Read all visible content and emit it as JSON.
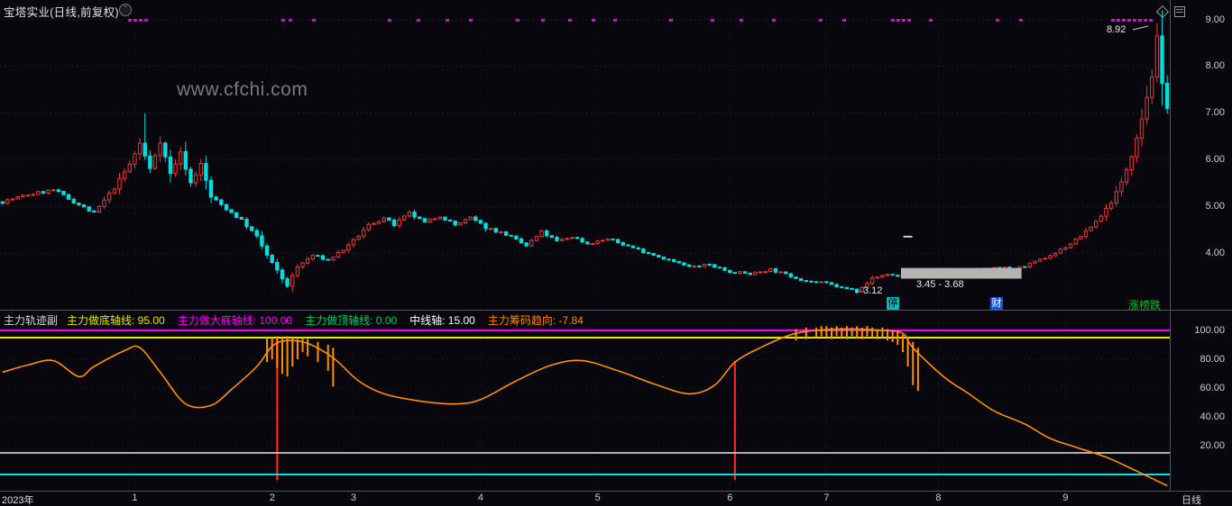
{
  "app": {
    "title": "宝塔实业(日线,前复权)",
    "watermark": "www.cfchi.com",
    "period_label": "日线",
    "year_label": "2023年"
  },
  "colors": {
    "background": "#07070d",
    "up": "#f03838",
    "down": "#00dede",
    "grid": "#1d1d2e",
    "ind_grid": "#161624",
    "separator": "#53535f",
    "axis_text": "#cfcfcf",
    "signal_dot": "#e800e8",
    "range_box": "#b4b4b4",
    "red_signal": "#ff2222",
    "curve": "#ff9000",
    "pointer_line": "#cfcfcf",
    "dash_marker": "#d0d0d0"
  },
  "chart_data": [
    {
      "type": "candlestick",
      "name": "main-price-chart",
      "title": "宝塔实业(日线,前复权)",
      "period": "日线",
      "adjust": "前复权",
      "days": 230,
      "ylim": [
        3.0,
        9.25
      ],
      "yticks": [
        {
          "label": "9.00",
          "value": 9
        },
        {
          "label": "8.00",
          "value": 8
        },
        {
          "label": "7.00",
          "value": 7
        },
        {
          "label": "6.00",
          "value": 6
        },
        {
          "label": "5.00",
          "value": 5
        },
        {
          "label": "4.00",
          "value": 4
        }
      ],
      "x_ticks": [
        {
          "label": "1",
          "day": 26
        },
        {
          "label": "2",
          "day": 53
        },
        {
          "label": "3",
          "day": 69
        },
        {
          "label": "4",
          "day": 94
        },
        {
          "label": "5",
          "day": 117
        },
        {
          "label": "6",
          "day": 143
        },
        {
          "label": "7",
          "day": 162
        },
        {
          "label": "8",
          "day": 184
        },
        {
          "label": "9",
          "day": 209
        }
      ],
      "close_anchors": [
        [
          0,
          5.1
        ],
        [
          5,
          5.25
        ],
        [
          10,
          5.35
        ],
        [
          14,
          5.1
        ],
        [
          18,
          4.85
        ],
        [
          22,
          5.4
        ],
        [
          25,
          5.9
        ],
        [
          27,
          6.35
        ],
        [
          29,
          5.8
        ],
        [
          31,
          6.4
        ],
        [
          33,
          5.7
        ],
        [
          35,
          6.15
        ],
        [
          37,
          5.5
        ],
        [
          39,
          5.9
        ],
        [
          41,
          5.2
        ],
        [
          44,
          4.95
        ],
        [
          47,
          4.7
        ],
        [
          50,
          4.35
        ],
        [
          52,
          3.95
        ],
        [
          55,
          3.45
        ],
        [
          56,
          3.3
        ],
        [
          58,
          3.7
        ],
        [
          61,
          3.95
        ],
        [
          64,
          3.85
        ],
        [
          68,
          4.15
        ],
        [
          72,
          4.6
        ],
        [
          75,
          4.75
        ],
        [
          77,
          4.6
        ],
        [
          80,
          4.85
        ],
        [
          83,
          4.65
        ],
        [
          86,
          4.8
        ],
        [
          89,
          4.6
        ],
        [
          92,
          4.75
        ],
        [
          95,
          4.55
        ],
        [
          99,
          4.4
        ],
        [
          103,
          4.15
        ],
        [
          106,
          4.45
        ],
        [
          109,
          4.25
        ],
        [
          112,
          4.35
        ],
        [
          115,
          4.2
        ],
        [
          119,
          4.3
        ],
        [
          123,
          4.15
        ],
        [
          127,
          4.0
        ],
        [
          131,
          3.85
        ],
        [
          135,
          3.7
        ],
        [
          139,
          3.75
        ],
        [
          143,
          3.6
        ],
        [
          147,
          3.55
        ],
        [
          151,
          3.65
        ],
        [
          155,
          3.5
        ],
        [
          158,
          3.4
        ],
        [
          162,
          3.35
        ],
        [
          165,
          3.25
        ],
        [
          168,
          3.2
        ],
        [
          171,
          3.45
        ],
        [
          174,
          3.55
        ],
        [
          176,
          3.5
        ],
        [
          179,
          3.6
        ],
        [
          183,
          3.65
        ],
        [
          187,
          3.55
        ],
        [
          191,
          3.6
        ],
        [
          195,
          3.7
        ],
        [
          199,
          3.65
        ],
        [
          203,
          3.8
        ],
        [
          207,
          4.0
        ],
        [
          210,
          4.2
        ],
        [
          213,
          4.45
        ],
        [
          216,
          4.8
        ],
        [
          218,
          5.1
        ],
        [
          220,
          5.5
        ],
        [
          222,
          6.1
        ],
        [
          224,
          6.9
        ],
        [
          226,
          7.8
        ],
        [
          227,
          8.6
        ],
        [
          228,
          7.6
        ],
        [
          229,
          7.15
        ]
      ],
      "high_overrides": [
        [
          28,
          7.0
        ],
        [
          227,
          8.92
        ]
      ],
      "low_overrides": [
        [
          56,
          3.25
        ],
        [
          168,
          3.12
        ]
      ],
      "annotations": {
        "peak_price": "8.92",
        "low_price": "←3.12",
        "range_label": "3.45 - 3.68"
      },
      "range_box": {
        "from_day": 177,
        "to_day": 200,
        "high": 3.68,
        "low": 3.45
      },
      "dash_marker": {
        "day": 178,
        "price": 4.37
      },
      "signal_dots_x": [
        142,
        148,
        154,
        160,
        312,
        320,
        346,
        430,
        462,
        494,
        520,
        572,
        600,
        630,
        656,
        680,
        742,
        788,
        820,
        856,
        908,
        934,
        988,
        994,
        1000,
        1006,
        1030,
        1104,
        1130,
        1232,
        1238,
        1244,
        1250,
        1256,
        1262,
        1268,
        1274
      ],
      "badges": [
        {
          "text": "停",
          "x": 983,
          "bg": "#00b8b8",
          "fg": "#001a1a"
        },
        {
          "text": "财",
          "x": 1098,
          "bg": "#1253e0",
          "fg": "#ffffff"
        }
      ],
      "corner_text": {
        "text": "涨榜跌",
        "color": "#00c020"
      }
    },
    {
      "type": "line",
      "name": "主力轨迹副",
      "header_params": [
        {
          "label": "主力做底轴线",
          "value": "95.00",
          "color": "#e8e800"
        },
        {
          "label": "主力做大底轴线",
          "value": "100.00",
          "color": "#ff00ff"
        },
        {
          "label": "主力做顶轴线",
          "value": "0.00",
          "color": "#00cc66"
        },
        {
          "label": "中线轴",
          "value": "15.00",
          "color": "#ffffff"
        },
        {
          "label": "主力筹码趋向",
          "value": "-7.84",
          "color": "#ff8800"
        }
      ],
      "yticks": [
        {
          "label": "100.00",
          "value": 100
        },
        {
          "label": "80.00",
          "value": 80
        },
        {
          "label": "60.00",
          "value": 60
        },
        {
          "label": "40.00",
          "value": 40
        },
        {
          "label": "20.00",
          "value": 20
        }
      ],
      "hlines": [
        {
          "value": 100,
          "color": "#ff00ff",
          "width": 2
        },
        {
          "value": 95,
          "color": "#e8e800",
          "width": 2
        },
        {
          "value": 15,
          "color": "#e8e8e8",
          "width": 1.5
        },
        {
          "value": 0,
          "color": "#00e0e0",
          "width": 2
        }
      ],
      "curve_anchors": [
        [
          0,
          71
        ],
        [
          5,
          76
        ],
        [
          10,
          79
        ],
        [
          15,
          68
        ],
        [
          18,
          75
        ],
        [
          24,
          86
        ],
        [
          27,
          88
        ],
        [
          31,
          71
        ],
        [
          36,
          49
        ],
        [
          41,
          48
        ],
        [
          45,
          59
        ],
        [
          50,
          75
        ],
        [
          53,
          89
        ],
        [
          56,
          93
        ],
        [
          60,
          91
        ],
        [
          65,
          81
        ],
        [
          70,
          65
        ],
        [
          75,
          56
        ],
        [
          82,
          51
        ],
        [
          89,
          49
        ],
        [
          94,
          52
        ],
        [
          101,
          65
        ],
        [
          108,
          76
        ],
        [
          114,
          79
        ],
        [
          121,
          72
        ],
        [
          128,
          63
        ],
        [
          135,
          56
        ],
        [
          140,
          62
        ],
        [
          144,
          78
        ],
        [
          149,
          88
        ],
        [
          155,
          97
        ],
        [
          160,
          100
        ],
        [
          166,
          101
        ],
        [
          173,
          100
        ],
        [
          177,
          98
        ],
        [
          179,
          88
        ],
        [
          185,
          68
        ],
        [
          190,
          56
        ],
        [
          195,
          44
        ],
        [
          201,
          35
        ],
        [
          206,
          25
        ],
        [
          211,
          19
        ],
        [
          217,
          12
        ],
        [
          222,
          4
        ],
        [
          225,
          -1
        ],
        [
          229,
          -7.84
        ]
      ],
      "red_signals": [
        {
          "day": 54,
          "from": 95,
          "to": -4
        },
        {
          "day": 144,
          "from": 79,
          "to": -4
        }
      ],
      "orange_bars": [
        [
          52,
          95,
          78
        ],
        [
          53,
          95,
          80
        ],
        [
          54,
          96,
          74
        ],
        [
          55,
          95,
          70
        ],
        [
          56,
          96,
          68
        ],
        [
          57,
          95,
          75
        ],
        [
          58,
          94,
          80
        ],
        [
          59,
          95,
          85
        ],
        [
          60,
          94,
          82
        ],
        [
          62,
          92,
          78
        ],
        [
          64,
          90,
          72
        ],
        [
          65,
          88,
          61
        ],
        [
          156,
          101,
          93
        ],
        [
          158,
          102,
          94
        ],
        [
          160,
          102,
          95
        ],
        [
          161,
          103,
          96
        ],
        [
          162,
          103,
          95
        ],
        [
          163,
          102,
          94
        ],
        [
          164,
          103,
          96
        ],
        [
          165,
          102,
          95
        ],
        [
          166,
          103,
          94
        ],
        [
          167,
          102,
          96
        ],
        [
          168,
          103,
          95
        ],
        [
          169,
          102,
          94
        ],
        [
          170,
          103,
          96
        ],
        [
          171,
          102,
          95
        ],
        [
          172,
          101,
          94
        ],
        [
          173,
          102,
          95
        ],
        [
          174,
          101,
          93
        ],
        [
          175,
          100,
          92
        ],
        [
          176,
          99,
          90
        ],
        [
          177,
          97,
          85
        ],
        [
          178,
          95,
          75
        ],
        [
          179,
          92,
          62
        ],
        [
          180,
          88,
          58
        ]
      ]
    }
  ]
}
